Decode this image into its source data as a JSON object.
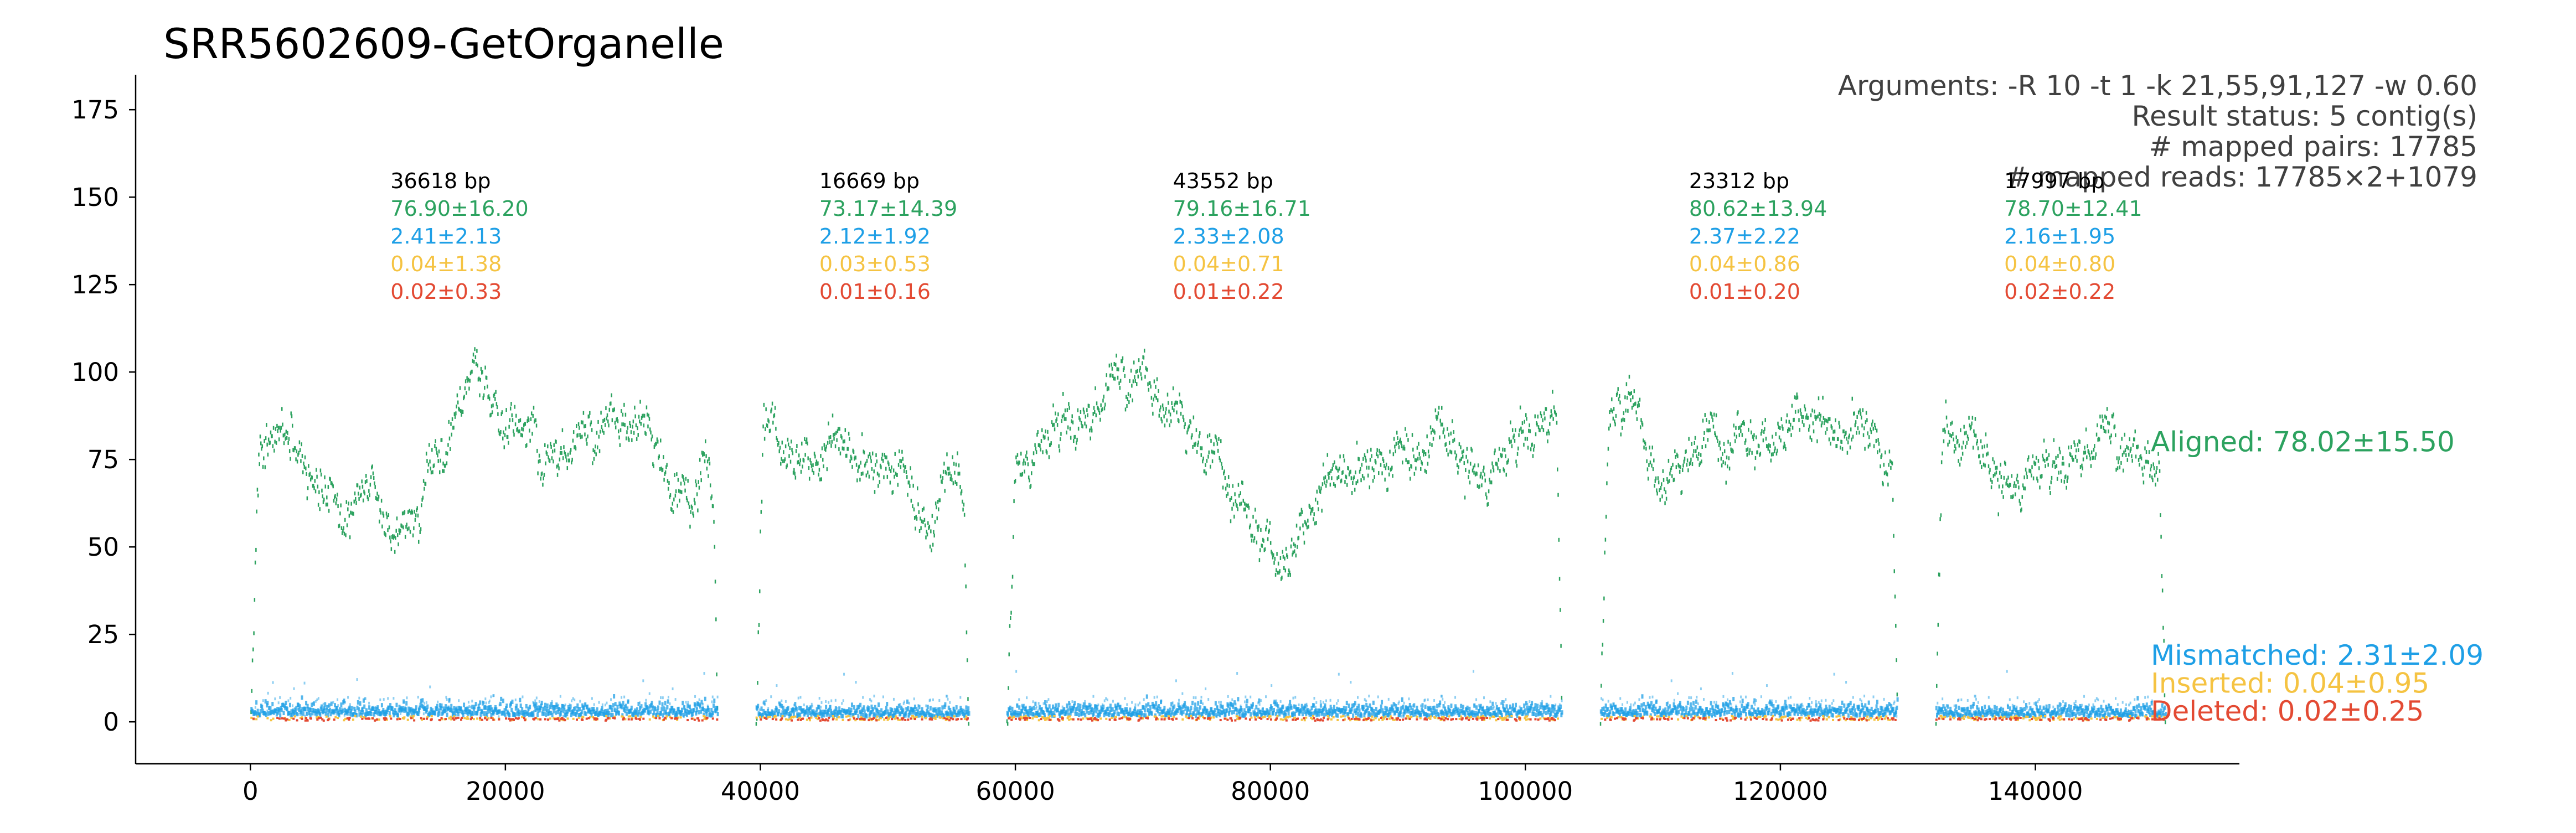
{
  "chart_data": {
    "type": "scatter",
    "title": "SRR5602609-GetOrganelle",
    "xlabel": "",
    "ylabel": "",
    "xlim": [
      -9000,
      156000
    ],
    "ylim": [
      -12,
      185
    ],
    "x_ticks": [
      0,
      20000,
      40000,
      60000,
      80000,
      100000,
      120000,
      140000
    ],
    "x_tick_labels": [
      "0",
      "20000",
      "40000",
      "60000",
      "80000",
      "100000",
      "120000",
      "140000"
    ],
    "y_ticks": [
      0,
      25,
      50,
      75,
      100,
      125,
      150,
      175
    ],
    "y_tick_labels": [
      "0",
      "25",
      "50",
      "75",
      "100",
      "125",
      "150",
      "175"
    ],
    "grid": false,
    "colors": {
      "aligned": "#2ca25f",
      "mismatched": "#1e9fe6",
      "inserted": "#f5c342",
      "deleted": "#e34a33",
      "text": "#404040"
    },
    "arguments": [
      "Arguments: -R 10 -t 1 -k 21,55,91,127 -w 0.60",
      "Result status: 5 contig(s)",
      "# mapped pairs: 17785",
      "# mapped reads: 17785×2+1079"
    ],
    "contigs": [
      {
        "start": 0,
        "end": 36618,
        "length_label": "36618 bp",
        "aligned_label": "76.90±16.20",
        "mismatched_label": "2.41±2.13",
        "inserted_label": "0.04±1.38",
        "deleted_label": "0.02±0.33",
        "aligned_profile": [
          [
            0,
            0
          ],
          [
            600,
            80
          ],
          [
            1500,
            90
          ],
          [
            3000,
            78
          ],
          [
            4500,
            70
          ],
          [
            6000,
            62
          ],
          [
            7500,
            57
          ],
          [
            9000,
            65
          ],
          [
            10500,
            58
          ],
          [
            12000,
            54
          ],
          [
            13500,
            68
          ],
          [
            15000,
            78
          ],
          [
            16500,
            92
          ],
          [
            18000,
            100
          ],
          [
            19500,
            96
          ],
          [
            21000,
            88
          ],
          [
            22500,
            82
          ],
          [
            24000,
            80
          ],
          [
            25500,
            76
          ],
          [
            27000,
            82
          ],
          [
            28500,
            88
          ],
          [
            30000,
            92
          ],
          [
            31500,
            85
          ],
          [
            33000,
            70
          ],
          [
            34500,
            62
          ],
          [
            35500,
            82
          ],
          [
            36300,
            60
          ],
          [
            36618,
            0
          ]
        ],
        "mismatched_mean": 2.41,
        "mismatched_spread": 3.5,
        "inserted_mean": 0.04,
        "deleted_mean": 0.02
      },
      {
        "start": 39618,
        "end": 56287,
        "length_label": "16669 bp",
        "aligned_label": "73.17±14.39",
        "mismatched_label": "2.12±1.92",
        "inserted_label": "0.03±0.53",
        "deleted_label": "0.01±0.16",
        "aligned_profile": [
          [
            39618,
            0
          ],
          [
            40200,
            92
          ],
          [
            41500,
            84
          ],
          [
            43000,
            80
          ],
          [
            44500,
            76
          ],
          [
            46000,
            80
          ],
          [
            47500,
            75
          ],
          [
            49000,
            72
          ],
          [
            50500,
            76
          ],
          [
            52000,
            66
          ],
          [
            53500,
            60
          ],
          [
            55000,
            75
          ],
          [
            55900,
            70
          ],
          [
            56287,
            0
          ]
        ],
        "mismatched_mean": 2.12,
        "mismatched_spread": 3.2,
        "inserted_mean": 0.03,
        "deleted_mean": 0.01
      },
      {
        "start": 59287,
        "end": 102839,
        "length_label": "43552 bp",
        "aligned_label": "79.16±16.71",
        "mismatched_label": "2.33±2.08",
        "inserted_label": "0.04±0.71",
        "deleted_label": "0.01±0.22",
        "aligned_profile": [
          [
            59287,
            0
          ],
          [
            60000,
            80
          ],
          [
            62000,
            85
          ],
          [
            64000,
            88
          ],
          [
            66000,
            90
          ],
          [
            68000,
            95
          ],
          [
            70000,
            100
          ],
          [
            72000,
            95
          ],
          [
            74000,
            85
          ],
          [
            76000,
            75
          ],
          [
            78000,
            62
          ],
          [
            79500,
            55
          ],
          [
            81000,
            50
          ],
          [
            83000,
            62
          ],
          [
            85000,
            70
          ],
          [
            87000,
            72
          ],
          [
            89000,
            76
          ],
          [
            91000,
            80
          ],
          [
            93000,
            85
          ],
          [
            95000,
            80
          ],
          [
            97000,
            78
          ],
          [
            99000,
            82
          ],
          [
            101000,
            88
          ],
          [
            102400,
            90
          ],
          [
            102839,
            0
          ]
        ],
        "mismatched_mean": 2.33,
        "mismatched_spread": 3.5,
        "inserted_mean": 0.04,
        "deleted_mean": 0.01
      },
      {
        "start": 105839,
        "end": 129151,
        "length_label": "23312 bp",
        "aligned_label": "80.62±13.94",
        "mismatched_label": "2.37±2.22",
        "inserted_label": "0.04±0.86",
        "deleted_label": "0.01±0.20",
        "aligned_profile": [
          [
            105839,
            0
          ],
          [
            106500,
            80
          ],
          [
            108000,
            95
          ],
          [
            109500,
            80
          ],
          [
            111000,
            72
          ],
          [
            112500,
            78
          ],
          [
            114000,
            85
          ],
          [
            115500,
            80
          ],
          [
            117000,
            85
          ],
          [
            118500,
            82
          ],
          [
            120000,
            88
          ],
          [
            121500,
            92
          ],
          [
            123000,
            85
          ],
          [
            124500,
            80
          ],
          [
            126000,
            86
          ],
          [
            127500,
            82
          ],
          [
            128700,
            72
          ],
          [
            129151,
            0
          ]
        ],
        "mismatched_mean": 2.37,
        "mismatched_spread": 3.5,
        "inserted_mean": 0.04,
        "deleted_mean": 0.01
      },
      {
        "start": 132151,
        "end": 150148,
        "length_label": "17997 bp",
        "aligned_label": "78.70±12.41",
        "mismatched_label": "2.16±1.95",
        "inserted_label": "0.04±0.80",
        "deleted_label": "0.02±0.22",
        "aligned_profile": [
          [
            132151,
            0
          ],
          [
            132700,
            90
          ],
          [
            134000,
            85
          ],
          [
            135500,
            80
          ],
          [
            137000,
            75
          ],
          [
            138500,
            76
          ],
          [
            140000,
            78
          ],
          [
            141500,
            74
          ],
          [
            143000,
            80
          ],
          [
            144500,
            78
          ],
          [
            146000,
            80
          ],
          [
            147500,
            76
          ],
          [
            149000,
            80
          ],
          [
            149700,
            78
          ],
          [
            150148,
            0
          ]
        ],
        "mismatched_mean": 2.16,
        "mismatched_spread": 3.3,
        "inserted_mean": 0.04,
        "deleted_mean": 0.02
      }
    ],
    "summary": [
      {
        "key": "aligned",
        "label": "Aligned: 78.02±15.50",
        "y": 80
      },
      {
        "key": "mismatched",
        "label": "Mismatched: 2.31±2.09",
        "y": 19
      },
      {
        "key": "inserted",
        "label": "Inserted: 0.04±0.95",
        "y": 11
      },
      {
        "key": "deleted",
        "label": "Deleted: 0.02±0.25",
        "y": 3
      }
    ]
  }
}
